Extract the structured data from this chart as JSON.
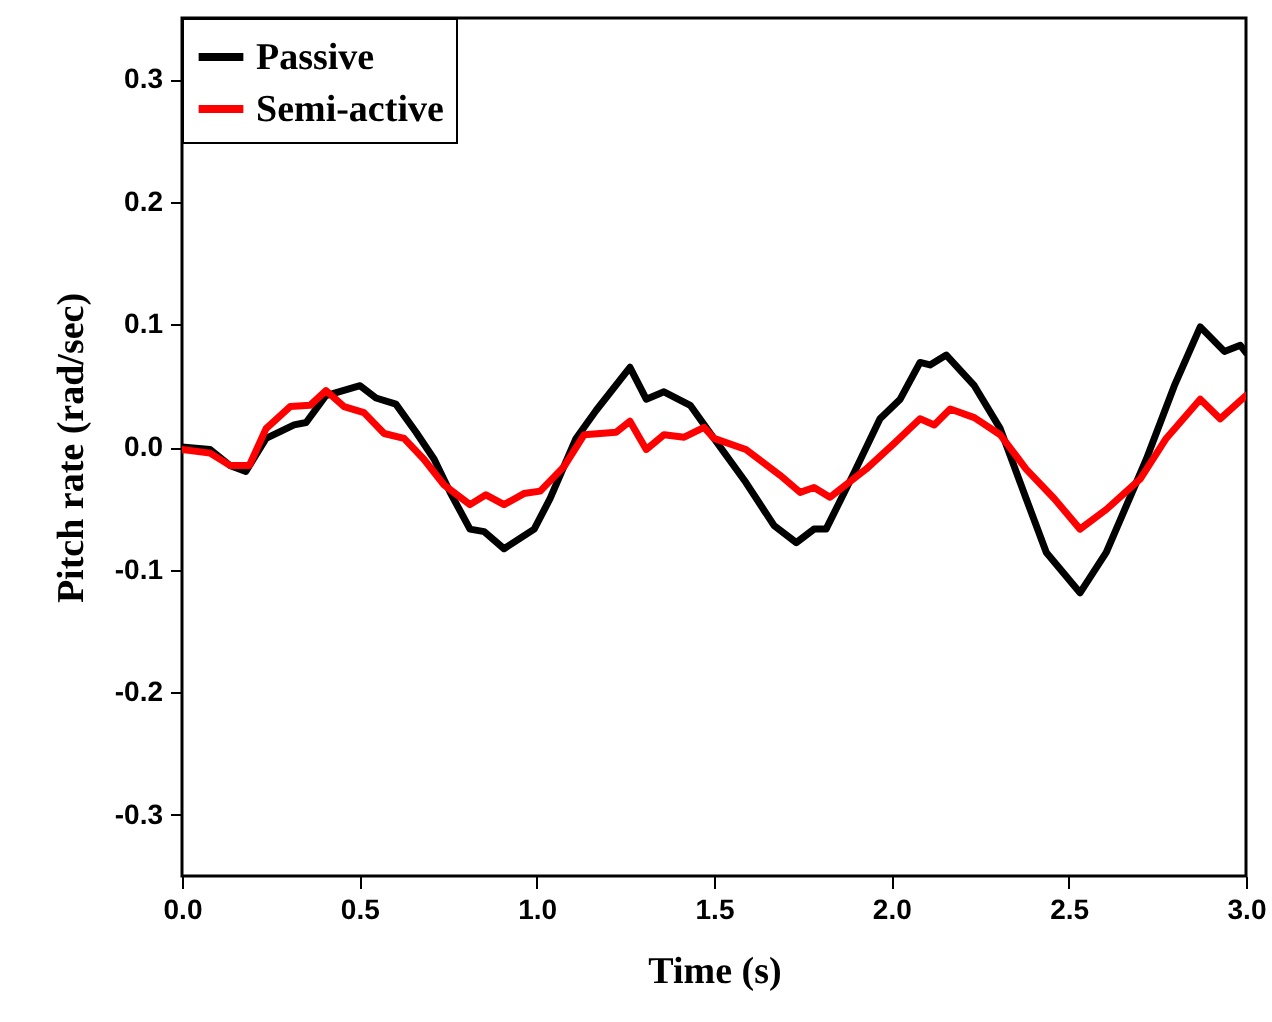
{
  "chart_data": {
    "type": "line",
    "xlabel": "Time (s)",
    "ylabel": "Pitch rate (rad/sec)",
    "xlim": [
      0,
      3
    ],
    "ylim": [
      -0.35,
      0.35
    ],
    "xticks": [
      {
        "value": 0,
        "label": "0.0"
      },
      0.5,
      {
        "value": 1,
        "label": "1.0"
      },
      1.5,
      {
        "value": 2,
        "label": "2.0"
      },
      2.5,
      {
        "value": 3,
        "label": "3.0"
      }
    ],
    "yticks": [
      -0.3,
      -0.2,
      -0.1,
      {
        "value": 0,
        "label": "0.0"
      },
      0.1,
      0.2,
      0.3
    ],
    "grid": false,
    "legend": "top left",
    "line_style": "solid",
    "marker": "none",
    "series": [
      {
        "name": "Passive",
        "color": "#000000",
        "x": [
          0,
          0.079,
          0.135,
          0.18,
          0.237,
          0.316,
          0.35,
          0.406,
          0.502,
          0.547,
          0.603,
          0.66,
          0.711,
          0.756,
          0.812,
          0.852,
          0.908,
          0.993,
          1.038,
          1.111,
          1.168,
          1.263,
          1.309,
          1.359,
          1.433,
          1.5,
          1.59,
          1.669,
          1.732,
          1.782,
          1.816,
          1.895,
          1.968,
          2.025,
          2.081,
          2.109,
          2.155,
          2.234,
          2.307,
          2.38,
          2.437,
          2.532,
          2.606,
          2.719,
          2.798,
          2.871,
          2.939,
          2.984,
          3.0
        ],
        "values": [
          0,
          -0.002,
          -0.015,
          -0.02,
          0.007,
          0.018,
          0.02,
          0.042,
          0.05,
          0.04,
          0.035,
          0.012,
          -0.01,
          -0.037,
          -0.067,
          -0.069,
          -0.083,
          -0.067,
          -0.042,
          0.007,
          0.03,
          0.065,
          0.039,
          0.045,
          0.034,
          0.007,
          -0.029,
          -0.064,
          -0.078,
          -0.067,
          -0.067,
          -0.021,
          0.023,
          0.039,
          0.069,
          0.067,
          0.075,
          0.05,
          0.015,
          -0.042,
          -0.086,
          -0.119,
          -0.086,
          -0.01,
          0.05,
          0.098,
          0.078,
          0.083,
          0.077
        ]
      },
      {
        "name": "Semi-active",
        "color": "#ff0000",
        "x": [
          0,
          0.079,
          0.135,
          0.19,
          0.237,
          0.305,
          0.361,
          0.406,
          0.457,
          0.513,
          0.57,
          0.626,
          0.682,
          0.739,
          0.812,
          0.857,
          0.908,
          0.964,
          1.01,
          1.077,
          1.134,
          1.224,
          1.263,
          1.309,
          1.359,
          1.416,
          1.472,
          1.5,
          1.59,
          1.686,
          1.743,
          1.782,
          1.827,
          1.929,
          2.008,
          2.081,
          2.121,
          2.166,
          2.234,
          2.307,
          2.38,
          2.459,
          2.532,
          2.606,
          2.702,
          2.775,
          2.871,
          2.927,
          3.0
        ],
        "values": [
          -0.002,
          -0.005,
          -0.015,
          -0.015,
          0.015,
          0.033,
          0.034,
          0.046,
          0.033,
          0.028,
          0.011,
          0.007,
          -0.01,
          -0.031,
          -0.047,
          -0.039,
          -0.047,
          -0.038,
          -0.036,
          -0.016,
          0.01,
          0.012,
          0.021,
          -0.002,
          0.01,
          0.008,
          0.016,
          0.007,
          -0.002,
          -0.023,
          -0.037,
          -0.033,
          -0.041,
          -0.018,
          0.003,
          0.023,
          0.018,
          0.031,
          0.024,
          0.01,
          -0.018,
          -0.042,
          -0.067,
          -0.051,
          -0.026,
          0.007,
          0.039,
          0.023,
          0.042
        ]
      }
    ]
  }
}
